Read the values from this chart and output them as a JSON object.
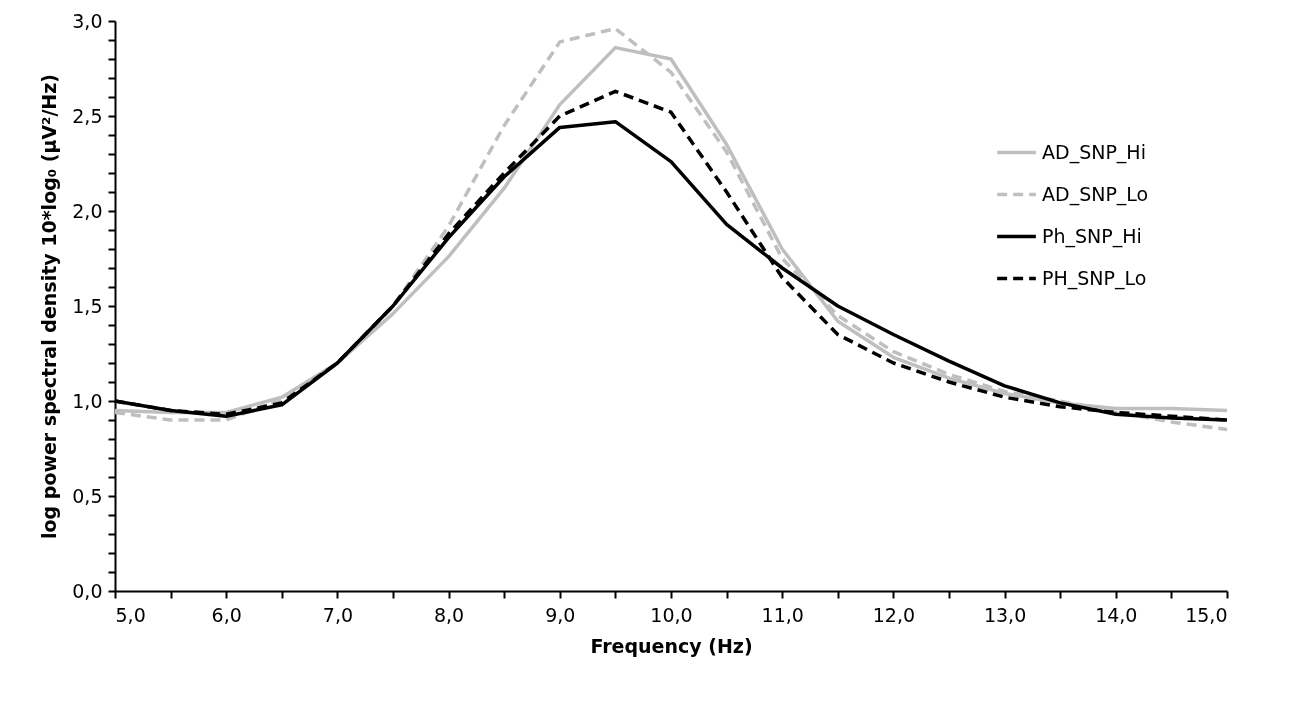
{
  "chart_data": {
    "type": "line",
    "xlabel": "Frequency (Hz)",
    "ylabel": "log power spectral density 10*log₀ (µV²/Hz)",
    "x": [
      5.0,
      5.5,
      6.0,
      6.5,
      7.0,
      7.5,
      8.0,
      8.5,
      9.0,
      9.5,
      10.0,
      10.5,
      11.0,
      11.5,
      12.0,
      12.5,
      13.0,
      13.5,
      14.0,
      14.5,
      15.0
    ],
    "series": [
      {
        "name": "AD_SNP_Hi",
        "color": "#bfbfbf",
        "line_style": "solid",
        "values": [
          0.95,
          0.94,
          0.94,
          1.02,
          1.2,
          1.46,
          1.76,
          2.12,
          2.56,
          2.86,
          2.8,
          2.35,
          1.8,
          1.42,
          1.23,
          1.12,
          1.04,
          0.99,
          0.96,
          0.96,
          0.95
        ]
      },
      {
        "name": "AD_SNP_Lo",
        "color": "#bfbfbf",
        "line_style": "dashed",
        "values": [
          0.94,
          0.9,
          0.9,
          1.01,
          1.2,
          1.5,
          1.92,
          2.45,
          2.89,
          2.96,
          2.73,
          2.31,
          1.75,
          1.45,
          1.26,
          1.14,
          1.05,
          1.0,
          0.94,
          0.89,
          0.85
        ]
      },
      {
        "name": "Ph_SNP_Hi",
        "color": "#000000",
        "line_style": "solid",
        "values": [
          1.0,
          0.95,
          0.92,
          0.98,
          1.2,
          1.5,
          1.86,
          2.18,
          2.44,
          2.47,
          2.26,
          1.93,
          1.7,
          1.5,
          1.35,
          1.21,
          1.08,
          0.99,
          0.93,
          0.91,
          0.9
        ]
      },
      {
        "name": "PH_SNP_Lo",
        "color": "#000000",
        "line_style": "dashed",
        "values": [
          1.0,
          0.95,
          0.93,
          0.99,
          1.2,
          1.5,
          1.88,
          2.2,
          2.5,
          2.63,
          2.52,
          2.1,
          1.65,
          1.35,
          1.2,
          1.1,
          1.02,
          0.97,
          0.94,
          0.92,
          0.9
        ]
      }
    ],
    "xlim": [
      5.0,
      15.0
    ],
    "xticks": [
      {
        "value": 5,
        "label": "5,0"
      },
      {
        "value": 5.5,
        "label": null
      },
      {
        "value": 6,
        "label": "6,0"
      },
      {
        "value": 6.5,
        "label": null
      },
      {
        "value": 7,
        "label": "7,0"
      },
      {
        "value": 7.5,
        "label": null
      },
      {
        "value": 8,
        "label": "8,0"
      },
      {
        "value": 8.5,
        "label": null
      },
      {
        "value": 9,
        "label": "9,0"
      },
      {
        "value": 9.5,
        "label": null
      },
      {
        "value": 10,
        "label": "10,0"
      },
      {
        "value": 10.5,
        "label": null
      },
      {
        "value": 11,
        "label": "11,0"
      },
      {
        "value": 11.5,
        "label": null
      },
      {
        "value": 12,
        "label": "12,0"
      },
      {
        "value": 12.5,
        "label": null
      },
      {
        "value": 13,
        "label": "13,0"
      },
      {
        "value": 13.5,
        "label": null
      },
      {
        "value": 14,
        "label": "14,0"
      },
      {
        "value": 14.5,
        "label": null
      },
      {
        "value": 15,
        "label": "15,0"
      }
    ],
    "ylim": [
      0,
      3.0
    ],
    "yticks": [
      {
        "value": 0,
        "label": "0,0"
      },
      {
        "value": 0.1,
        "label": null
      },
      {
        "value": 0.2,
        "label": null
      },
      {
        "value": 0.3,
        "label": null
      },
      {
        "value": 0.4,
        "label": null
      },
      {
        "value": 0.5,
        "label": "0,5"
      },
      {
        "value": 0.6,
        "label": null
      },
      {
        "value": 0.7,
        "label": null
      },
      {
        "value": 0.8,
        "label": null
      },
      {
        "value": 0.9,
        "label": null
      },
      {
        "value": 1,
        "label": "1,0"
      },
      {
        "value": 1.1,
        "label": null
      },
      {
        "value": 1.2,
        "label": null
      },
      {
        "value": 1.3,
        "label": null
      },
      {
        "value": 1.4,
        "label": null
      },
      {
        "value": 1.5,
        "label": "1,5"
      },
      {
        "value": 1.6,
        "label": null
      },
      {
        "value": 1.7,
        "label": null
      },
      {
        "value": 1.8,
        "label": null
      },
      {
        "value": 1.9,
        "label": null
      },
      {
        "value": 2,
        "label": "2,0"
      },
      {
        "value": 2.1,
        "label": null
      },
      {
        "value": 2.2,
        "label": null
      },
      {
        "value": 2.3,
        "label": null
      },
      {
        "value": 2.4,
        "label": null
      },
      {
        "value": 2.5,
        "label": "2,5"
      },
      {
        "value": 2.6,
        "label": null
      },
      {
        "value": 2.7,
        "label": null
      },
      {
        "value": 2.8,
        "label": null
      },
      {
        "value": 2.9,
        "label": null
      },
      {
        "value": 3,
        "label": "3,0"
      }
    ],
    "grid": false,
    "legend": "right",
    "marker": "none"
  }
}
